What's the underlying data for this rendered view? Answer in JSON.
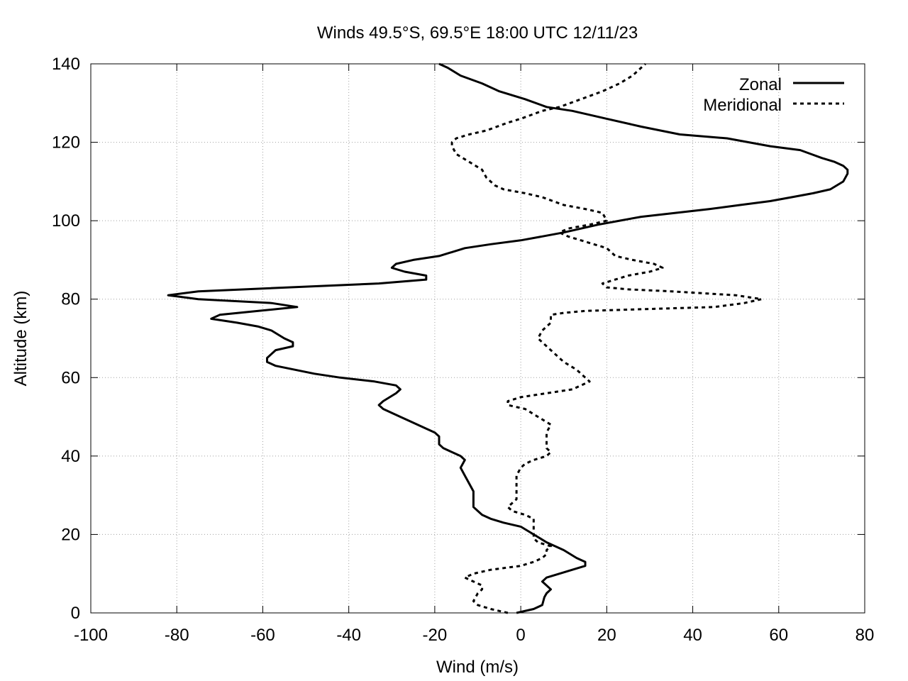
{
  "chart_data": {
    "type": "line",
    "title": "Winds 49.5°S, 69.5°E 18:00 UTC 12/11/23",
    "xlabel": "Wind (m/s)",
    "ylabel": "Altitude (km)",
    "xlim": [
      -100,
      80
    ],
    "ylim": [
      0,
      140
    ],
    "xticks": [
      -100,
      -80,
      -60,
      -40,
      -20,
      0,
      20,
      40,
      60,
      80
    ],
    "yticks": [
      0,
      20,
      40,
      60,
      80,
      100,
      120,
      140
    ],
    "xtick_labels": [
      "-100",
      "-80",
      "-60",
      "-40",
      "-20",
      "0",
      "20",
      "40",
      "60",
      "80"
    ],
    "ytick_labels": [
      "0",
      "20",
      "40",
      "60",
      "80",
      "100",
      "120",
      "140"
    ],
    "grid": true,
    "legend": "top-right",
    "series": [
      {
        "name": "Zonal",
        "style": "solid",
        "color": "#000000",
        "points": [
          [
            -1,
            0
          ],
          [
            3,
            1
          ],
          [
            5,
            2
          ],
          [
            5.5,
            4
          ],
          [
            6,
            5
          ],
          [
            7,
            6
          ],
          [
            6,
            7
          ],
          [
            5,
            8
          ],
          [
            6,
            9
          ],
          [
            9,
            10
          ],
          [
            12,
            11
          ],
          [
            15,
            12
          ],
          [
            15,
            13
          ],
          [
            13,
            14
          ],
          [
            10,
            16
          ],
          [
            6,
            18
          ],
          [
            3,
            20
          ],
          [
            0,
            22
          ],
          [
            -4,
            23
          ],
          [
            -7,
            24
          ],
          [
            -9,
            25
          ],
          [
            -10,
            26
          ],
          [
            -11,
            27
          ],
          [
            -11,
            30
          ],
          [
            -11,
            31
          ],
          [
            -12,
            33
          ],
          [
            -13,
            35
          ],
          [
            -14,
            37
          ],
          [
            -13,
            39
          ],
          [
            -14,
            40
          ],
          [
            -18,
            42
          ],
          [
            -19,
            43
          ],
          [
            -19,
            45
          ],
          [
            -20,
            46
          ],
          [
            -22,
            47
          ],
          [
            -26,
            49
          ],
          [
            -28,
            50
          ],
          [
            -32,
            52
          ],
          [
            -33,
            53
          ],
          [
            -32,
            54
          ],
          [
            -29,
            56
          ],
          [
            -28,
            57
          ],
          [
            -29,
            58
          ],
          [
            -34,
            59
          ],
          [
            -42,
            60
          ],
          [
            -48,
            61
          ],
          [
            -57,
            63
          ],
          [
            -59,
            64
          ],
          [
            -59,
            65
          ],
          [
            -57,
            67
          ],
          [
            -53,
            68
          ],
          [
            -53,
            69
          ],
          [
            -55,
            70
          ],
          [
            -58,
            72
          ],
          [
            -61,
            73
          ],
          [
            -66,
            74
          ],
          [
            -72,
            75
          ],
          [
            -70,
            76
          ],
          [
            -61,
            77
          ],
          [
            -52,
            78
          ],
          [
            -58,
            79
          ],
          [
            -75,
            80
          ],
          [
            -82,
            81
          ],
          [
            -75,
            82
          ],
          [
            -33,
            84
          ],
          [
            -22,
            85
          ],
          [
            -22,
            86
          ],
          [
            -27,
            87
          ],
          [
            -30,
            88
          ],
          [
            -29,
            89
          ],
          [
            -25,
            90
          ],
          [
            -19,
            91
          ],
          [
            -13,
            93
          ],
          [
            -7,
            94
          ],
          [
            0,
            95
          ],
          [
            5,
            96
          ],
          [
            10,
            97
          ],
          [
            14,
            98
          ],
          [
            18,
            99
          ],
          [
            23,
            100
          ],
          [
            28,
            101
          ],
          [
            36,
            102
          ],
          [
            44,
            103
          ],
          [
            51,
            104
          ],
          [
            58,
            105
          ],
          [
            63,
            106
          ],
          [
            68,
            107
          ],
          [
            72,
            108
          ],
          [
            75,
            110
          ],
          [
            76,
            112
          ],
          [
            76,
            113
          ],
          [
            75,
            114
          ],
          [
            73,
            115
          ],
          [
            70,
            116
          ],
          [
            65,
            118
          ],
          [
            58,
            119
          ],
          [
            48,
            121
          ],
          [
            37,
            122
          ],
          [
            28,
            124
          ],
          [
            20,
            126
          ],
          [
            12,
            128
          ],
          [
            6,
            129
          ],
          [
            1,
            131
          ],
          [
            -5,
            133
          ],
          [
            -9,
            135
          ],
          [
            -14,
            137
          ],
          [
            -17,
            139
          ],
          [
            -19,
            140
          ]
        ]
      },
      {
        "name": "Meridional",
        "style": "dashed",
        "color": "#000000",
        "points": [
          [
            -3,
            0
          ],
          [
            -7,
            1
          ],
          [
            -10,
            2
          ],
          [
            -11,
            3
          ],
          [
            -10,
            5
          ],
          [
            -9,
            6
          ],
          [
            -9,
            7
          ],
          [
            -11,
            8
          ],
          [
            -13,
            9
          ],
          [
            -11,
            10
          ],
          [
            -7,
            11
          ],
          [
            0,
            12
          ],
          [
            3,
            13
          ],
          [
            5,
            14
          ],
          [
            6,
            15
          ],
          [
            6,
            16
          ],
          [
            7,
            17
          ],
          [
            4,
            18
          ],
          [
            3,
            19
          ],
          [
            3,
            20
          ],
          [
            3,
            22
          ],
          [
            3,
            24
          ],
          [
            1,
            25
          ],
          [
            -2,
            26
          ],
          [
            -3,
            27
          ],
          [
            -2,
            28
          ],
          [
            -1,
            29
          ],
          [
            -1,
            31
          ],
          [
            -1,
            33
          ],
          [
            -1,
            35
          ],
          [
            0,
            37
          ],
          [
            1,
            38
          ],
          [
            3,
            39
          ],
          [
            6,
            40
          ],
          [
            7,
            41
          ],
          [
            6,
            42
          ],
          [
            6,
            44
          ],
          [
            6,
            46
          ],
          [
            7,
            48
          ],
          [
            4,
            50
          ],
          [
            1,
            52
          ],
          [
            -3,
            53
          ],
          [
            -3,
            54
          ],
          [
            0,
            55
          ],
          [
            6,
            56
          ],
          [
            12,
            57
          ],
          [
            14,
            58
          ],
          [
            16,
            59
          ],
          [
            15,
            60
          ],
          [
            13,
            62
          ],
          [
            10,
            64
          ],
          [
            7,
            67
          ],
          [
            5,
            69
          ],
          [
            4,
            70
          ],
          [
            5,
            72
          ],
          [
            7,
            74
          ],
          [
            7,
            76
          ],
          [
            10,
            76.5
          ],
          [
            15,
            77
          ],
          [
            45,
            78
          ],
          [
            52,
            79
          ],
          [
            56,
            80
          ],
          [
            50,
            81
          ],
          [
            35,
            82
          ],
          [
            25,
            82.5
          ],
          [
            20,
            83
          ],
          [
            19,
            84
          ],
          [
            25,
            86
          ],
          [
            30,
            87
          ],
          [
            33,
            88
          ],
          [
            31,
            89
          ],
          [
            26,
            90
          ],
          [
            22,
            91
          ],
          [
            20,
            93
          ],
          [
            17,
            94
          ],
          [
            14,
            95
          ],
          [
            11,
            96
          ],
          [
            9,
            97
          ],
          [
            11,
            98
          ],
          [
            16,
            99
          ],
          [
            20,
            100
          ],
          [
            19,
            102
          ],
          [
            15,
            103
          ],
          [
            10,
            104
          ],
          [
            5,
            106
          ],
          [
            1,
            107
          ],
          [
            -4,
            108
          ],
          [
            -6,
            109
          ],
          [
            -8,
            111
          ],
          [
            -9,
            113
          ],
          [
            -12,
            115
          ],
          [
            -15,
            117
          ],
          [
            -16,
            119
          ],
          [
            -16,
            120
          ],
          [
            -15,
            121
          ],
          [
            -12,
            122
          ],
          [
            -8,
            123
          ],
          [
            -3,
            125
          ],
          [
            0,
            126
          ],
          [
            5,
            128
          ],
          [
            9,
            129
          ],
          [
            14,
            131
          ],
          [
            19,
            133
          ],
          [
            23,
            135
          ],
          [
            26,
            137
          ],
          [
            28,
            139
          ],
          [
            29,
            140
          ]
        ]
      }
    ]
  }
}
